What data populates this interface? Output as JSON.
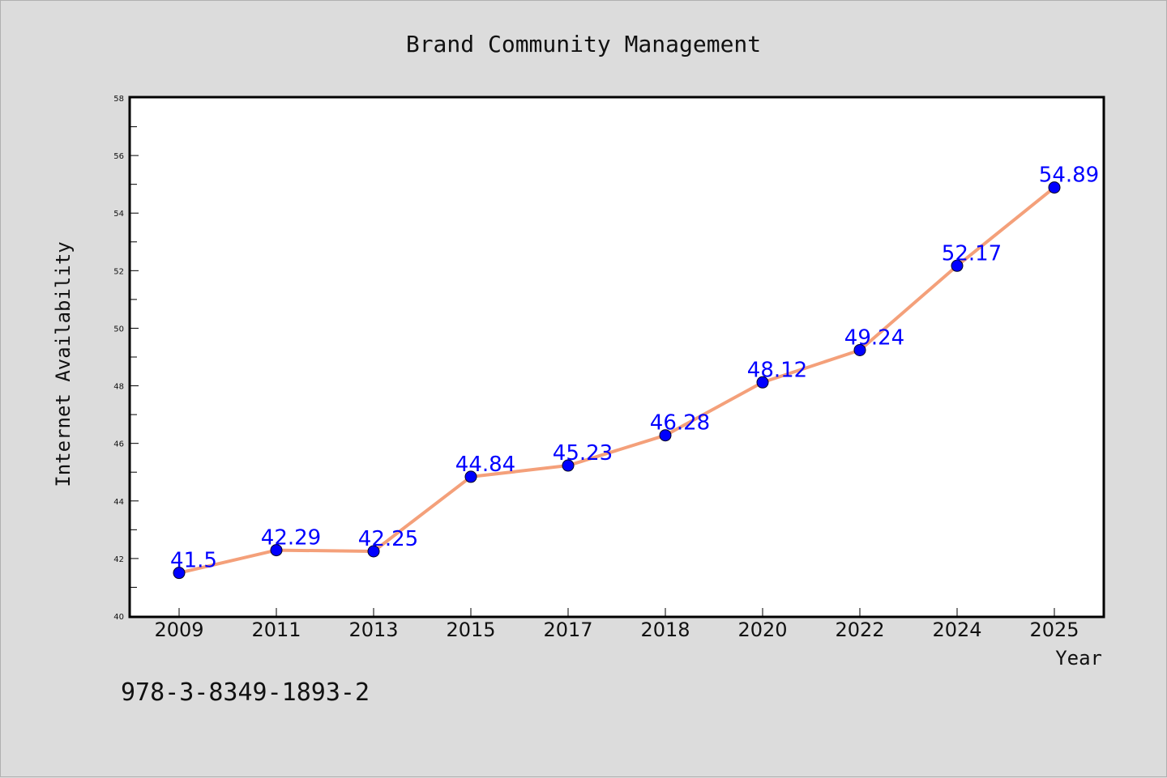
{
  "chart_data": {
    "type": "line",
    "title": "Brand Community Management",
    "xlabel": "Year",
    "ylabel": "Internet Availability",
    "categories": [
      "2009",
      "2011",
      "2013",
      "2015",
      "2017",
      "2018",
      "2020",
      "2022",
      "2024",
      "2025"
    ],
    "series": [
      {
        "values": [
          41.5,
          42.29,
          42.25,
          44.84,
          45.23,
          46.28,
          48.12,
          49.24,
          52.17,
          54.89
        ],
        "labels": [
          "41.5",
          "42.29",
          "42.25",
          "44.84",
          "45.23",
          "46.28",
          "48.12",
          "49.24",
          "52.17",
          "54.89"
        ],
        "line_color": "#f4a07a",
        "marker_color": "#0000ff"
      }
    ],
    "ylim": [
      40,
      58
    ],
    "yticks": [
      "40",
      "42",
      "44",
      "46",
      "48",
      "50",
      "52",
      "54",
      "56",
      "58"
    ],
    "grid": false,
    "legend": "none"
  },
  "footer": {
    "isbn": "978-3-8349-1893-2"
  }
}
